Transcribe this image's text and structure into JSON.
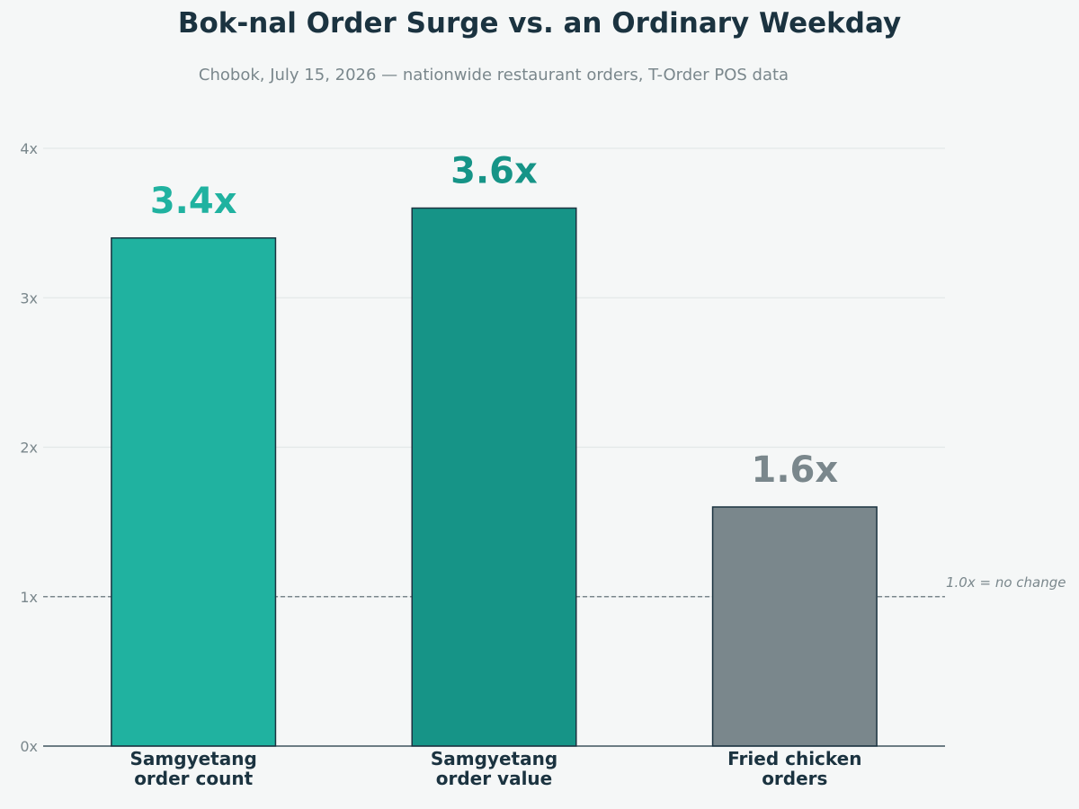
{
  "chart_data": {
    "type": "bar",
    "title": "Bok-nal Order Surge vs. an Ordinary Weekday",
    "subtitle": "Chobok, July 15, 2026 — nationwide restaurant orders, T-Order POS data",
    "categories": [
      [
        "Samgyetang",
        "order count"
      ],
      [
        "Samgyetang",
        "order value"
      ],
      [
        "Fried chicken",
        "orders"
      ]
    ],
    "values": [
      3.4,
      3.6,
      1.6
    ],
    "value_labels": [
      "3.4x",
      "3.6x",
      "1.6x"
    ],
    "bar_colors": [
      "#20b2a0",
      "#169487",
      "#7a878c"
    ],
    "label_colors": [
      "#20b2a0",
      "#169487",
      "#7a878c"
    ],
    "yticks": [
      0,
      1,
      2,
      3,
      4
    ],
    "ytick_labels": [
      "0x",
      "1x",
      "2x",
      "3x",
      "4x"
    ],
    "ylim": [
      0,
      4.2
    ],
    "grid": true,
    "reference_line": {
      "value": 1.0,
      "label": "1.0x = no change"
    }
  }
}
